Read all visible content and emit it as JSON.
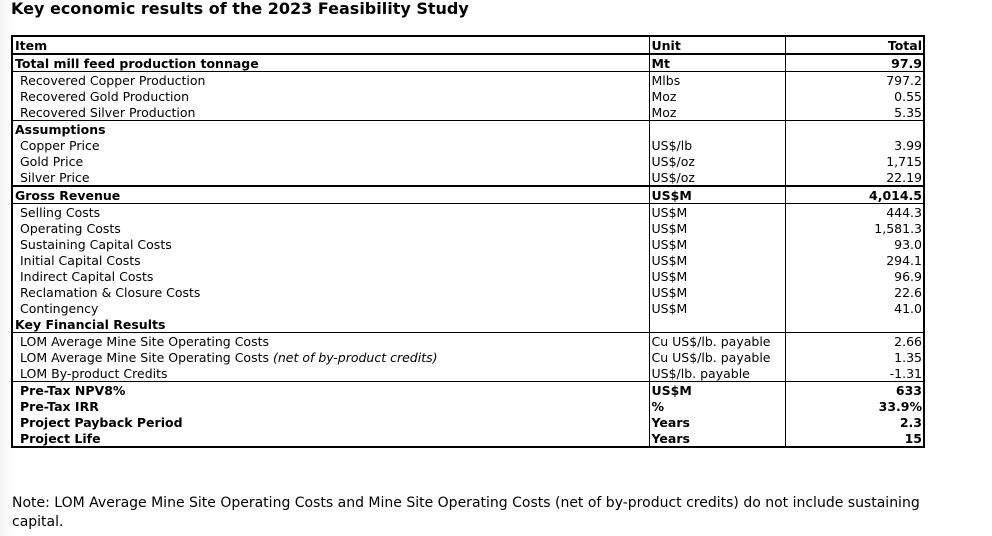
{
  "title": "Key economic results of the 2023 Feasibility Study",
  "table": {
    "headers": {
      "item": "Item",
      "unit": "Unit",
      "total": "Total"
    },
    "rows": [
      {
        "item": "Total mill feed production tonnage",
        "unit": "Mt",
        "total": "97.9"
      },
      {
        "item": "Recovered Copper Production",
        "unit": "Mlbs",
        "total": "797.2"
      },
      {
        "item": "Recovered Gold Production",
        "unit": "Moz",
        "total": "0.55"
      },
      {
        "item": "Recovered Silver Production",
        "unit": "Moz",
        "total": "5.35"
      },
      {
        "item": "Assumptions",
        "unit": "",
        "total": ""
      },
      {
        "item": "Copper Price",
        "unit": "US$/lb",
        "total": "3.99"
      },
      {
        "item": "Gold Price",
        "unit": "US$/oz",
        "total": "1,715"
      },
      {
        "item": "Silver Price",
        "unit": "US$/oz",
        "total": "22.19"
      },
      {
        "item": "Gross Revenue",
        "unit": "US$M",
        "total": "4,014.5"
      },
      {
        "item": "Selling Costs",
        "unit": "US$M",
        "total": "444.3"
      },
      {
        "item": "Operating Costs",
        "unit": "US$M",
        "total": "1,581.3"
      },
      {
        "item": "Sustaining Capital Costs",
        "unit": "US$M",
        "total": "93.0"
      },
      {
        "item": "Initial Capital Costs",
        "unit": "US$M",
        "total": "294.1"
      },
      {
        "item": "Indirect Capital Costs",
        "unit": "US$M",
        "total": "96.9"
      },
      {
        "item": "Reclamation & Closure Costs",
        "unit": "US$M",
        "total": "22.6"
      },
      {
        "item": "Contingency",
        "unit": "US$M",
        "total": "41.0"
      },
      {
        "item": "Key Financial Results",
        "unit": "",
        "total": ""
      },
      {
        "item": "LOM Average Mine Site Operating Costs",
        "unit": "Cu US$/lb. payable",
        "total": "2.66"
      },
      {
        "item": "LOM Average Mine Site Operating Costs ",
        "item_em": "(net of by-product credits)",
        "unit": "Cu US$/lb. payable",
        "total": "1.35"
      },
      {
        "item": "LOM By-product Credits",
        "unit": "US$/lb. payable",
        "total": "-1.31"
      },
      {
        "item": "Pre-Tax NPV8%",
        "unit": "US$M",
        "total": "633"
      },
      {
        "item": "Pre-Tax IRR",
        "unit": "%",
        "total": "33.9%"
      },
      {
        "item": "Project Payback Period",
        "unit": "Years",
        "total": "2.3"
      },
      {
        "item": "Project Life",
        "unit": "Years",
        "total": "15"
      }
    ]
  },
  "note": "Note: LOM Average Mine Site Operating Costs and Mine Site Operating Costs (net of by-product credits) do not include sustaining capital."
}
